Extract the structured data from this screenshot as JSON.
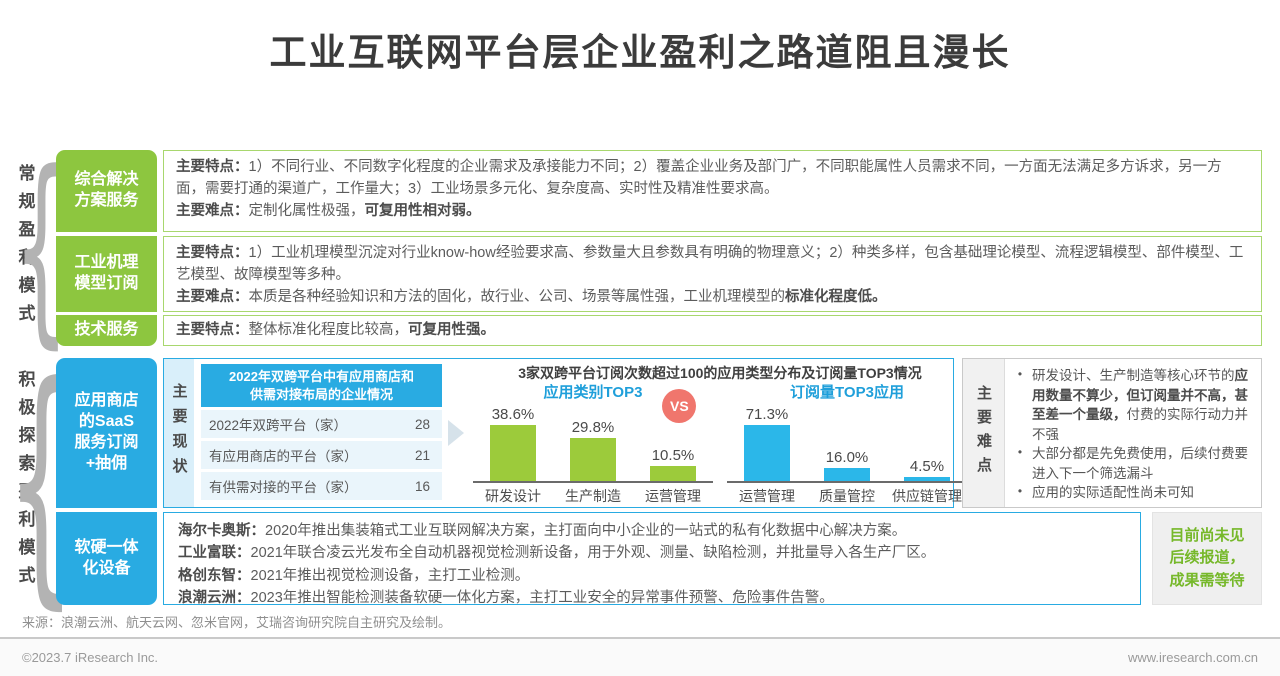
{
  "title": "工业互联网平台层企业盈利之路道阻且漫长",
  "colors": {
    "title_text": "#3b3b3b",
    "green_box": "#8dc63f",
    "green_border": "#a8d76e",
    "blue_box": "#29abe2",
    "green_bar": "#9ccb3b",
    "blue_bar": "#2bb7e9",
    "vs_badge": "#f0766d",
    "note_text": "#76b82a"
  },
  "left": {
    "group1_label": "常规盈利模式",
    "group2_label": "积极探索盈利模式"
  },
  "rows": {
    "r1": {
      "label": "综合解决\n方案服务",
      "p1": [
        {
          "t": "主要特点：",
          "b": 1
        },
        {
          "t": "1）不同行业、不同数字化程度的企业需求及承接能力不同；2）覆盖企业业务及部门广，不同职能属性人员需求不同，一方面无法满足多方诉求，另一方面，需要打通的渠道广，工作量大；3）工业场景多元化、复杂度高、实时性及精准性要求高。",
          "b": 0
        }
      ],
      "p2": [
        {
          "t": "主要难点：",
          "b": 1
        },
        {
          "t": "定制化属性极强，",
          "b": 0
        },
        {
          "t": "可复用性相对弱。",
          "b": 1
        }
      ]
    },
    "r2": {
      "label": "工业机理\n模型订阅",
      "p1": [
        {
          "t": "主要特点：",
          "b": 1
        },
        {
          "t": "1）工业机理模型沉淀对行业know-how经验要求高、参数量大且参数具有明确的物理意义；2）种类多样，包含基础理论模型、流程逻辑模型、部件模型、工艺模型、故障模型等多种。",
          "b": 0
        }
      ],
      "p2": [
        {
          "t": "主要难点：",
          "b": 1
        },
        {
          "t": "本质是各种经验知识和方法的固化，故行业、公司、场景等属性强，工业机理模型的",
          "b": 0
        },
        {
          "t": "标准化程度低。",
          "b": 1
        }
      ]
    },
    "r3": {
      "label": "技术服务",
      "p1": [
        {
          "t": "主要特点：",
          "b": 1
        },
        {
          "t": "整体标准化程度比较高，",
          "b": 0
        },
        {
          "t": "可复用性强。",
          "b": 1
        }
      ]
    },
    "saas": {
      "label": "应用商店\n的SaaS\n服务订阅\n+抽佣",
      "status_label": "主要现状",
      "difficulties_label": "主要难点",
      "bullets": [
        [
          {
            "t": "研发设计、生产制造等核心环节的",
            "b": 0
          },
          {
            "t": "应用数量不算少，但订阅量并不高，甚至差一个量级，",
            "b": 1
          },
          {
            "t": "付费的实际行动力并不强",
            "b": 0
          }
        ],
        [
          {
            "t": "大部分都是先免费使用，后续付费要进入下一个筛选漏斗",
            "b": 0
          }
        ],
        [
          {
            "t": "应用的实际适配性尚未可知",
            "b": 0
          }
        ]
      ]
    },
    "hw": {
      "label": "软硬一体\n化设备",
      "lines": [
        [
          {
            "t": "海尔卡奥斯：",
            "b": 1
          },
          {
            "t": "2020年推出集装箱式工业互联网解决方案，主打面向中小企业的一站式的私有化数据中心解决方案。",
            "b": 0
          }
        ],
        [
          {
            "t": "工业富联：",
            "b": 1
          },
          {
            "t": "2021年联合凌云光发布全自动机器视觉检测新设备，用于外观、测量、缺陷检测，并批量导入各生产厂区。",
            "b": 0
          }
        ],
        [
          {
            "t": "格创东智：",
            "b": 1
          },
          {
            "t": "2021年推出视觉检测设备，主打工业检测。",
            "b": 0
          }
        ],
        [
          {
            "t": "浪潮云洲：",
            "b": 1
          },
          {
            "t": "2023年推出智能检测装备软硬一体化方案，主打工业安全的异常事件预警、危险事件告警。",
            "b": 0
          }
        ]
      ],
      "note": "目前尚未见\n后续报道，\n成果需等待"
    }
  },
  "chart_data": [
    {
      "type": "bar",
      "title": "3家双跨平台订阅次数超过100的应用类型分布及订阅量TOP3情况",
      "vs_label": "VS",
      "value_suffix": "%",
      "grid": false,
      "legend_position": "top",
      "ylim": [
        0,
        80
      ],
      "series": [
        {
          "name": "应用类别TOP3",
          "color": "#9ccb3b",
          "categories": [
            "研发设计",
            "生产制造",
            "运营管理"
          ],
          "values": [
            38.6,
            29.8,
            10.5
          ],
          "labels": [
            "38.6%",
            "29.8%",
            "10.5%"
          ]
        },
        {
          "name": "订阅量TOP3应用",
          "color": "#2bb7e9",
          "categories": [
            "运营管理",
            "质量管控",
            "供应链管理"
          ],
          "values": [
            71.3,
            16.0,
            4.5
          ],
          "labels": [
            "71.3%",
            "16.0%",
            "4.5%"
          ]
        }
      ]
    },
    {
      "type": "table",
      "title": "2022年双跨平台中有应用商店和\n供需对接布局的企业情况",
      "rows": [
        {
          "label": "2022年双跨平台（家）",
          "value": "28"
        },
        {
          "label": "有应用商店的平台（家）",
          "value": "21"
        },
        {
          "label": "有供需对接的平台（家）",
          "value": "16"
        }
      ]
    }
  ],
  "footer": {
    "source": "来源：浪潮云洲、航天云网、忽米官网，艾瑞咨询研究院自主研究及绘制。",
    "copyright": "©2023.7 iResearch Inc.",
    "website": "www.iresearch.com.cn"
  }
}
